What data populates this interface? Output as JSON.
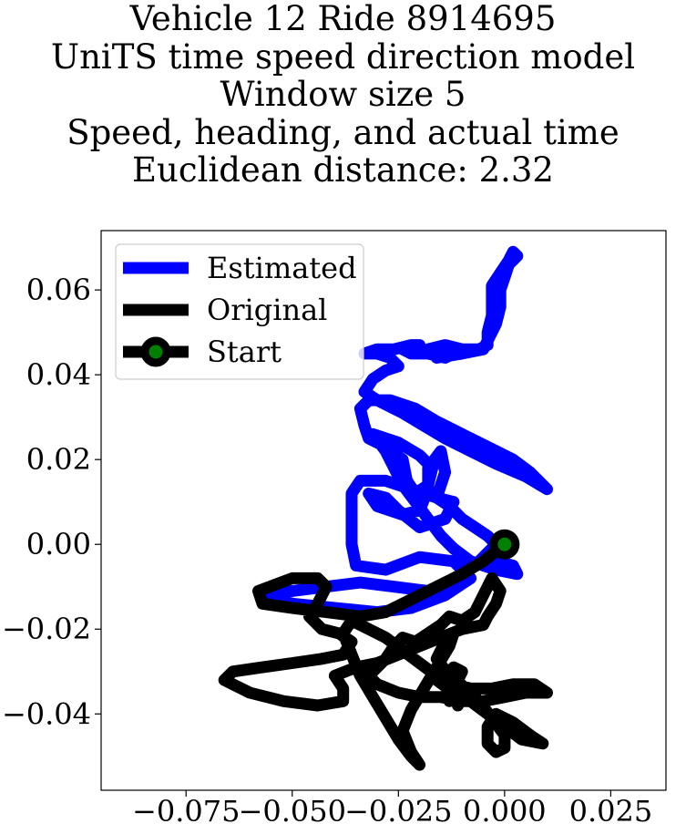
{
  "chart_data": {
    "type": "line",
    "title_lines": [
      "Vehicle 12 Ride 8914695",
      "UniTS time speed direction model",
      "Window size 5",
      "Speed, heading, and actual time",
      "Euclidean distance: 2.32"
    ],
    "xlabel": "",
    "ylabel": "",
    "xlim": [
      -0.095,
      0.038
    ],
    "ylim": [
      -0.058,
      0.074
    ],
    "x_ticks": [
      -0.075,
      -0.05,
      -0.025,
      0.0,
      0.025
    ],
    "x_tick_labels": [
      "−0.075",
      "−0.050",
      "−0.025",
      "0.000",
      "0.025"
    ],
    "y_ticks": [
      -0.04,
      -0.02,
      0.0,
      0.02,
      0.04,
      0.06
    ],
    "y_tick_labels": [
      "−0.04",
      "−0.02",
      "0.00",
      "0.02",
      "0.04",
      "0.06"
    ],
    "grid": false,
    "legend_position": "top-left",
    "series": [
      {
        "name": "Estimated",
        "color": "#0000ff",
        "points": [
          [
            0.0,
            0.0
          ],
          [
            -0.006,
            -0.004
          ],
          [
            -0.012,
            -0.009
          ],
          [
            -0.018,
            -0.011
          ],
          [
            -0.026,
            -0.01
          ],
          [
            -0.034,
            -0.009
          ],
          [
            -0.042,
            -0.01
          ],
          [
            -0.05,
            -0.011
          ],
          [
            -0.055,
            -0.012
          ],
          [
            -0.05,
            -0.014
          ],
          [
            -0.04,
            -0.015
          ],
          [
            -0.03,
            -0.016
          ],
          [
            -0.022,
            -0.015
          ],
          [
            -0.014,
            -0.012
          ],
          [
            -0.008,
            -0.008
          ],
          [
            -0.012,
            -0.004
          ],
          [
            -0.02,
            -0.003
          ],
          [
            -0.028,
            -0.006
          ],
          [
            -0.035,
            -0.005
          ],
          [
            -0.036,
            0.0
          ],
          [
            -0.036,
            0.006
          ],
          [
            -0.036,
            0.012
          ],
          [
            -0.034,
            0.015
          ],
          [
            -0.028,
            0.015
          ],
          [
            -0.022,
            0.013
          ],
          [
            -0.016,
            0.011
          ],
          [
            -0.012,
            0.01
          ],
          [
            -0.014,
            0.006
          ],
          [
            -0.02,
            0.004
          ],
          [
            -0.025,
            0.008
          ],
          [
            -0.028,
            0.011
          ],
          [
            -0.032,
            0.012
          ],
          [
            -0.03,
            0.009
          ],
          [
            -0.024,
            0.007
          ],
          [
            -0.02,
            0.008
          ],
          [
            -0.018,
            0.013
          ],
          [
            -0.018,
            0.018
          ],
          [
            -0.015,
            0.022
          ],
          [
            -0.014,
            0.017
          ],
          [
            -0.016,
            0.011
          ],
          [
            -0.013,
            0.009
          ],
          [
            -0.01,
            0.006
          ],
          [
            -0.007,
            0.004
          ],
          [
            -0.004,
            0.002
          ],
          [
            -0.002,
            0.0
          ],
          [
            -0.004,
            -0.002
          ],
          [
            -0.006,
            -0.004
          ],
          [
            -0.002,
            -0.004
          ],
          [
            0.002,
            -0.005
          ],
          [
            0.003,
            -0.007
          ],
          [
            -0.002,
            -0.006
          ],
          [
            -0.008,
            -0.004
          ],
          [
            -0.012,
            -0.001
          ],
          [
            -0.015,
            0.002
          ],
          [
            -0.018,
            0.006
          ],
          [
            -0.021,
            0.01
          ],
          [
            -0.024,
            0.014
          ],
          [
            -0.026,
            0.018
          ],
          [
            -0.028,
            0.022
          ],
          [
            -0.031,
            0.026
          ],
          [
            -0.025,
            0.024
          ],
          [
            -0.02,
            0.021
          ],
          [
            -0.017,
            0.018
          ],
          [
            -0.018,
            0.014
          ],
          [
            -0.021,
            0.012
          ],
          [
            -0.023,
            0.015
          ],
          [
            -0.024,
            0.02
          ],
          [
            -0.028,
            0.023
          ],
          [
            -0.032,
            0.025
          ],
          [
            -0.033,
            0.028
          ],
          [
            -0.034,
            0.032
          ],
          [
            -0.032,
            0.034
          ],
          [
            -0.027,
            0.034
          ],
          [
            -0.021,
            0.032
          ],
          [
            -0.016,
            0.029
          ],
          [
            -0.01,
            0.026
          ],
          [
            -0.004,
            0.023
          ],
          [
            0.002,
            0.02
          ],
          [
            0.006,
            0.017
          ],
          [
            0.01,
            0.013
          ],
          [
            0.005,
            0.016
          ],
          [
            -0.002,
            0.019
          ],
          [
            -0.008,
            0.022
          ],
          [
            -0.014,
            0.025
          ],
          [
            -0.019,
            0.028
          ],
          [
            -0.024,
            0.031
          ],
          [
            -0.03,
            0.034
          ],
          [
            -0.033,
            0.036
          ],
          [
            -0.031,
            0.039
          ],
          [
            -0.028,
            0.041
          ],
          [
            -0.025,
            0.042
          ],
          [
            -0.027,
            0.044
          ],
          [
            -0.03,
            0.045
          ],
          [
            -0.033,
            0.045
          ],
          [
            -0.03,
            0.046
          ],
          [
            -0.026,
            0.046
          ],
          [
            -0.022,
            0.047
          ],
          [
            -0.02,
            0.047
          ],
          [
            -0.024,
            0.046
          ],
          [
            -0.022,
            0.045
          ],
          [
            -0.018,
            0.045
          ],
          [
            -0.014,
            0.044
          ],
          [
            -0.012,
            0.045
          ],
          [
            -0.014,
            0.046
          ],
          [
            -0.018,
            0.046
          ],
          [
            -0.014,
            0.047
          ],
          [
            -0.01,
            0.046
          ],
          [
            -0.006,
            0.046
          ],
          [
            -0.004,
            0.047
          ],
          [
            -0.004,
            0.05
          ],
          [
            -0.003,
            0.054
          ],
          [
            -0.003,
            0.058
          ],
          [
            -0.003,
            0.061
          ],
          [
            -0.001,
            0.064
          ],
          [
            0.001,
            0.067
          ],
          [
            0.002,
            0.069
          ],
          [
            0.003,
            0.068
          ],
          [
            0.001,
            0.066
          ],
          [
            0.0,
            0.063
          ],
          [
            -0.001,
            0.06
          ],
          [
            -0.001,
            0.056
          ],
          [
            -0.002,
            0.052
          ],
          [
            -0.004,
            0.048
          ],
          [
            -0.005,
            0.046
          ],
          [
            -0.01,
            0.045
          ],
          [
            -0.016,
            0.044
          ]
        ]
      },
      {
        "name": "Original",
        "color": "#000000",
        "points": [
          [
            0.0,
            0.0
          ],
          [
            -0.005,
            -0.004
          ],
          [
            -0.01,
            -0.007
          ],
          [
            -0.016,
            -0.01
          ],
          [
            -0.022,
            -0.013
          ],
          [
            -0.028,
            -0.016
          ],
          [
            -0.034,
            -0.017
          ],
          [
            -0.042,
            -0.016
          ],
          [
            -0.05,
            -0.015
          ],
          [
            -0.057,
            -0.014
          ],
          [
            -0.058,
            -0.011
          ],
          [
            -0.05,
            -0.008
          ],
          [
            -0.044,
            -0.008
          ],
          [
            -0.042,
            -0.01
          ],
          [
            -0.044,
            -0.014
          ],
          [
            -0.046,
            -0.017
          ],
          [
            -0.043,
            -0.02
          ],
          [
            -0.039,
            -0.021
          ],
          [
            -0.036,
            -0.023
          ],
          [
            -0.038,
            -0.026
          ],
          [
            -0.043,
            -0.027
          ],
          [
            -0.05,
            -0.028
          ],
          [
            -0.057,
            -0.029
          ],
          [
            -0.064,
            -0.03
          ],
          [
            -0.066,
            -0.032
          ],
          [
            -0.06,
            -0.035
          ],
          [
            -0.052,
            -0.037
          ],
          [
            -0.044,
            -0.038
          ],
          [
            -0.038,
            -0.037
          ],
          [
            -0.038,
            -0.034
          ],
          [
            -0.04,
            -0.031
          ],
          [
            -0.035,
            -0.029
          ],
          [
            -0.03,
            -0.028
          ],
          [
            -0.025,
            -0.026
          ],
          [
            -0.02,
            -0.024
          ],
          [
            -0.015,
            -0.022
          ],
          [
            -0.01,
            -0.02
          ],
          [
            -0.005,
            -0.019
          ],
          [
            -0.004,
            -0.017
          ],
          [
            -0.002,
            -0.014
          ],
          [
            -0.001,
            -0.011
          ],
          [
            -0.003,
            -0.008
          ],
          [
            -0.005,
            -0.012
          ],
          [
            -0.007,
            -0.016
          ],
          [
            -0.01,
            -0.018
          ],
          [
            -0.013,
            -0.017
          ],
          [
            -0.015,
            -0.019
          ],
          [
            -0.018,
            -0.021
          ],
          [
            -0.021,
            -0.023
          ],
          [
            -0.024,
            -0.022
          ],
          [
            -0.026,
            -0.024
          ],
          [
            -0.028,
            -0.027
          ],
          [
            -0.03,
            -0.029
          ],
          [
            -0.032,
            -0.031
          ],
          [
            -0.03,
            -0.033
          ],
          [
            -0.025,
            -0.035
          ],
          [
            -0.02,
            -0.036
          ],
          [
            -0.015,
            -0.036
          ],
          [
            -0.01,
            -0.037
          ],
          [
            -0.005,
            -0.037
          ],
          [
            0.0,
            -0.036
          ],
          [
            0.005,
            -0.035
          ],
          [
            0.01,
            -0.035
          ],
          [
            0.007,
            -0.033
          ],
          [
            0.002,
            -0.033
          ],
          [
            -0.003,
            -0.034
          ],
          [
            -0.008,
            -0.034
          ],
          [
            -0.012,
            -0.033
          ],
          [
            -0.016,
            -0.031
          ],
          [
            -0.02,
            -0.028
          ],
          [
            -0.024,
            -0.025
          ],
          [
            -0.028,
            -0.022
          ],
          [
            -0.032,
            -0.02
          ],
          [
            -0.036,
            -0.018
          ],
          [
            -0.038,
            -0.021
          ],
          [
            -0.036,
            -0.026
          ],
          [
            -0.034,
            -0.031
          ],
          [
            -0.031,
            -0.036
          ],
          [
            -0.028,
            -0.041
          ],
          [
            -0.025,
            -0.046
          ],
          [
            -0.022,
            -0.05
          ],
          [
            -0.02,
            -0.052
          ],
          [
            -0.022,
            -0.049
          ],
          [
            -0.024,
            -0.044
          ],
          [
            -0.022,
            -0.039
          ],
          [
            -0.019,
            -0.034
          ],
          [
            -0.016,
            -0.029
          ],
          [
            -0.013,
            -0.024
          ],
          [
            -0.012,
            -0.021
          ],
          [
            -0.014,
            -0.023
          ],
          [
            -0.016,
            -0.027
          ],
          [
            -0.013,
            -0.031
          ],
          [
            -0.009,
            -0.034
          ],
          [
            -0.011,
            -0.036
          ],
          [
            -0.014,
            -0.032
          ],
          [
            -0.012,
            -0.029
          ],
          [
            -0.01,
            -0.03
          ],
          [
            -0.012,
            -0.034
          ],
          [
            -0.011,
            -0.038
          ],
          [
            -0.012,
            -0.035
          ],
          [
            -0.016,
            -0.032
          ],
          [
            -0.012,
            -0.035
          ],
          [
            -0.008,
            -0.037
          ],
          [
            -0.004,
            -0.04
          ],
          [
            0.0,
            -0.043
          ],
          [
            0.004,
            -0.046
          ],
          [
            0.009,
            -0.047
          ],
          [
            0.006,
            -0.045
          ],
          [
            0.002,
            -0.042
          ],
          [
            -0.002,
            -0.04
          ],
          [
            -0.004,
            -0.043
          ],
          [
            -0.004,
            -0.047
          ],
          [
            -0.002,
            -0.049
          ],
          [
            0.0,
            -0.048
          ],
          [
            0.0,
            -0.045
          ],
          [
            -0.003,
            -0.041
          ],
          [
            -0.006,
            -0.037
          ],
          [
            -0.009,
            -0.034
          ],
          [
            -0.011,
            -0.035
          ],
          [
            -0.013,
            -0.037
          ]
        ]
      }
    ],
    "legend": [
      {
        "label": "Estimated",
        "kind": "line",
        "color": "#0000ff"
      },
      {
        "label": "Original",
        "kind": "line",
        "color": "#000000"
      },
      {
        "label": "Start",
        "kind": "marker",
        "color": "#000000",
        "fill": "#008000"
      }
    ],
    "start_point": [
      0.0,
      0.0
    ]
  }
}
